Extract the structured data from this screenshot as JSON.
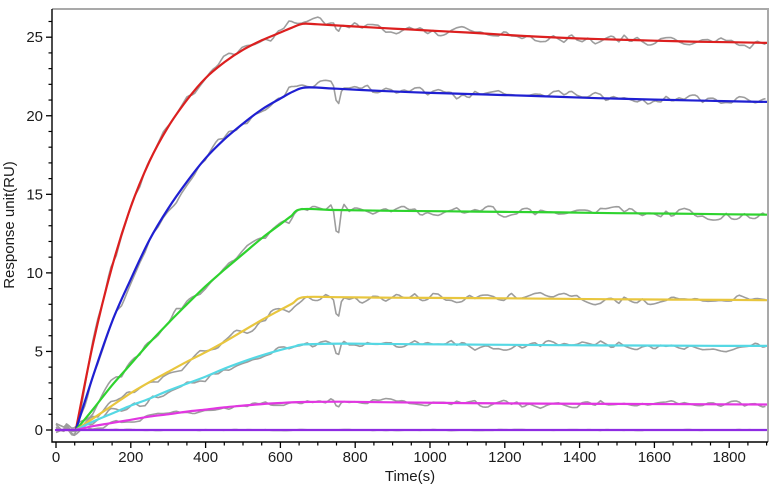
{
  "figure": {
    "background": "#ffffff",
    "description": "SPR sensorgram: raw gray traces with colored kinetic fit curves"
  },
  "chart_data": {
    "type": "line",
    "title": "",
    "xlabel": "Time(s)",
    "ylabel": "Response unit(RU)",
    "xlim": [
      0,
      1900
    ],
    "ylim": [
      -0.8,
      26.9
    ],
    "x_major_ticks": [
      0,
      200,
      400,
      600,
      800,
      1000,
      1200,
      1400,
      1600,
      1800
    ],
    "x_minor_step": 50,
    "y_major_ticks": [
      0,
      5,
      10,
      15,
      20,
      25
    ],
    "y_minor_step": 1,
    "grid": false,
    "legend": false,
    "axis_color": "#000000",
    "border_color": "#a9a9a9",
    "tick_label_color": "#1b1b1b",
    "raw_trace_color": "#9d9d9d",
    "association_start_s": 55,
    "association_end_s": 660,
    "series": [
      {
        "id": "red",
        "color": "#dc1f1f",
        "noise_amp": 0.32,
        "dip": -0.85,
        "raw_hump": {
          "amp": 0.3,
          "t": 700,
          "w": 70
        },
        "points": [
          [
            53,
            0
          ],
          [
            100,
            5.6
          ],
          [
            150,
            10.4
          ],
          [
            200,
            14.2
          ],
          [
            250,
            17.1
          ],
          [
            300,
            19.3
          ],
          [
            350,
            21.0
          ],
          [
            400,
            22.4
          ],
          [
            450,
            23.4
          ],
          [
            500,
            24.2
          ],
          [
            550,
            24.8
          ],
          [
            600,
            25.3
          ],
          [
            630,
            25.6
          ],
          [
            660,
            25.85
          ],
          [
            700,
            25.82
          ],
          [
            800,
            25.68
          ],
          [
            900,
            25.55
          ],
          [
            1000,
            25.42
          ],
          [
            1100,
            25.3
          ],
          [
            1200,
            25.15
          ],
          [
            1300,
            25.02
          ],
          [
            1400,
            24.92
          ],
          [
            1500,
            24.85
          ],
          [
            1600,
            24.78
          ],
          [
            1700,
            24.72
          ],
          [
            1800,
            24.68
          ],
          [
            1900,
            24.64
          ]
        ]
      },
      {
        "id": "blue",
        "color": "#1f1fd2",
        "noise_amp": 0.32,
        "dip": -1.25,
        "raw_hump": {
          "amp": 0.28,
          "t": 715,
          "w": 55
        },
        "points": [
          [
            53,
            0
          ],
          [
            100,
            3.5
          ],
          [
            150,
            6.9
          ],
          [
            200,
            9.6
          ],
          [
            250,
            12.1
          ],
          [
            300,
            14.1
          ],
          [
            350,
            15.8
          ],
          [
            400,
            17.3
          ],
          [
            450,
            18.5
          ],
          [
            500,
            19.5
          ],
          [
            550,
            20.4
          ],
          [
            600,
            21.1
          ],
          [
            635,
            21.55
          ],
          [
            668,
            21.8
          ],
          [
            750,
            21.72
          ],
          [
            850,
            21.6
          ],
          [
            950,
            21.5
          ],
          [
            1050,
            21.42
          ],
          [
            1150,
            21.35
          ],
          [
            1250,
            21.28
          ],
          [
            1350,
            21.2
          ],
          [
            1450,
            21.12
          ],
          [
            1550,
            21.06
          ],
          [
            1650,
            21.0
          ],
          [
            1750,
            20.95
          ],
          [
            1850,
            20.9
          ],
          [
            1900,
            20.88
          ]
        ]
      },
      {
        "id": "green",
        "color": "#2ed32e",
        "noise_amp": 0.3,
        "dip": -1.7,
        "raw_hump": null,
        "points": [
          [
            53,
            0
          ],
          [
            100,
            1.35
          ],
          [
            150,
            2.85
          ],
          [
            200,
            4.2
          ],
          [
            250,
            5.55
          ],
          [
            300,
            6.8
          ],
          [
            350,
            8.0
          ],
          [
            400,
            9.15
          ],
          [
            450,
            10.2
          ],
          [
            500,
            11.2
          ],
          [
            550,
            12.2
          ],
          [
            600,
            13.1
          ],
          [
            628,
            13.6
          ],
          [
            656,
            14.05
          ],
          [
            750,
            14.0
          ],
          [
            900,
            13.95
          ],
          [
            1050,
            13.92
          ],
          [
            1200,
            13.88
          ],
          [
            1350,
            13.85
          ],
          [
            1500,
            13.8
          ],
          [
            1650,
            13.77
          ],
          [
            1800,
            13.73
          ],
          [
            1900,
            13.7
          ]
        ]
      },
      {
        "id": "yellow",
        "color": "#e8c63e",
        "noise_amp": 0.3,
        "dip": -1.5,
        "raw_hump": null,
        "points": [
          [
            53,
            0
          ],
          [
            100,
            0.75
          ],
          [
            150,
            1.55
          ],
          [
            200,
            2.35
          ],
          [
            250,
            3.05
          ],
          [
            300,
            3.7
          ],
          [
            350,
            4.35
          ],
          [
            400,
            4.95
          ],
          [
            450,
            5.6
          ],
          [
            500,
            6.3
          ],
          [
            550,
            7.0
          ],
          [
            600,
            7.65
          ],
          [
            632,
            8.05
          ],
          [
            662,
            8.45
          ],
          [
            760,
            8.45
          ],
          [
            900,
            8.42
          ],
          [
            1050,
            8.4
          ],
          [
            1200,
            8.38
          ],
          [
            1350,
            8.35
          ],
          [
            1500,
            8.32
          ],
          [
            1650,
            8.3
          ],
          [
            1800,
            8.28
          ],
          [
            1900,
            8.26
          ]
        ]
      },
      {
        "id": "cyan",
        "color": "#55d8e4",
        "noise_amp": 0.28,
        "dip": -1.0,
        "raw_hump": null,
        "points": [
          [
            53,
            0
          ],
          [
            100,
            0.55
          ],
          [
            150,
            1.05
          ],
          [
            200,
            1.55
          ],
          [
            250,
            2.0
          ],
          [
            300,
            2.5
          ],
          [
            350,
            2.95
          ],
          [
            400,
            3.4
          ],
          [
            450,
            3.9
          ],
          [
            500,
            4.35
          ],
          [
            550,
            4.75
          ],
          [
            600,
            5.1
          ],
          [
            638,
            5.32
          ],
          [
            666,
            5.45
          ],
          [
            780,
            5.5
          ],
          [
            950,
            5.46
          ],
          [
            1150,
            5.43
          ],
          [
            1350,
            5.4
          ],
          [
            1550,
            5.38
          ],
          [
            1750,
            5.36
          ],
          [
            1900,
            5.35
          ]
        ]
      },
      {
        "id": "magenta",
        "color": "#e136e1",
        "noise_amp": 0.2,
        "dip": -0.45,
        "raw_hump": null,
        "points": [
          [
            0,
            0
          ],
          [
            53,
            0.02
          ],
          [
            100,
            0.25
          ],
          [
            150,
            0.45
          ],
          [
            200,
            0.65
          ],
          [
            250,
            0.85
          ],
          [
            300,
            1.0
          ],
          [
            350,
            1.17
          ],
          [
            400,
            1.3
          ],
          [
            450,
            1.44
          ],
          [
            500,
            1.55
          ],
          [
            550,
            1.65
          ],
          [
            600,
            1.72
          ],
          [
            660,
            1.78
          ],
          [
            760,
            1.8
          ],
          [
            900,
            1.76
          ],
          [
            1100,
            1.71
          ],
          [
            1300,
            1.68
          ],
          [
            1500,
            1.66
          ],
          [
            1700,
            1.64
          ],
          [
            1900,
            1.62
          ]
        ]
      },
      {
        "id": "violet",
        "color": "#8e2be2",
        "noise_amp": 0.03,
        "dip": 0,
        "raw_hump": null,
        "points": [
          [
            0,
            0
          ],
          [
            1900,
            0
          ]
        ]
      }
    ]
  }
}
